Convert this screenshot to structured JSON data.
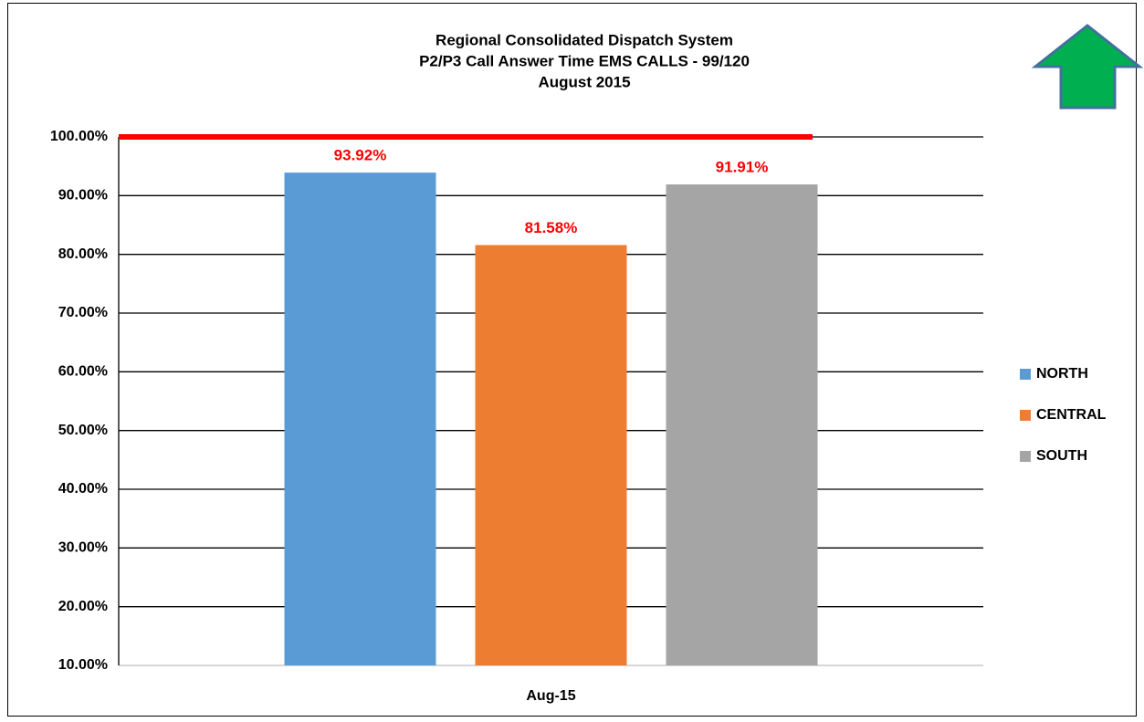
{
  "chart_data": {
    "type": "bar",
    "title": "Regional Consolidated Dispatch System",
    "subtitle": [
      "P2/P3 Call Answer Time EMS CALLS - 99/120",
      "August 2015"
    ],
    "categories": [
      "Aug-15"
    ],
    "series": [
      {
        "name": "NORTH",
        "color": "#5b9bd5",
        "values": [
          93.92
        ],
        "value_labels": [
          "93.92%"
        ]
      },
      {
        "name": "CENTRAL",
        "color": "#ed7d31",
        "values": [
          81.58
        ],
        "value_labels": [
          "81.58%"
        ]
      },
      {
        "name": "SOUTH",
        "color": "#a5a5a5",
        "values": [
          91.91
        ],
        "value_labels": [
          "91.91%"
        ]
      }
    ],
    "ylim": [
      10,
      100
    ],
    "yticks": [
      {
        "value": 10,
        "label": "10.00%"
      },
      {
        "value": 20,
        "label": "20.00%"
      },
      {
        "value": 30,
        "label": "30.00%"
      },
      {
        "value": 40,
        "label": "40.00%"
      },
      {
        "value": 50,
        "label": "50.00%"
      },
      {
        "value": 60,
        "label": "60.00%"
      },
      {
        "value": 70,
        "label": "70.00%"
      },
      {
        "value": 80,
        "label": "80.00%"
      },
      {
        "value": 90,
        "label": "90.00%"
      },
      {
        "value": 100,
        "label": "100.00%"
      }
    ],
    "grid": true,
    "legend": "right",
    "reference_line": {
      "value": 100,
      "color": "#ff0000"
    },
    "value_label_color": "#ff0000"
  }
}
